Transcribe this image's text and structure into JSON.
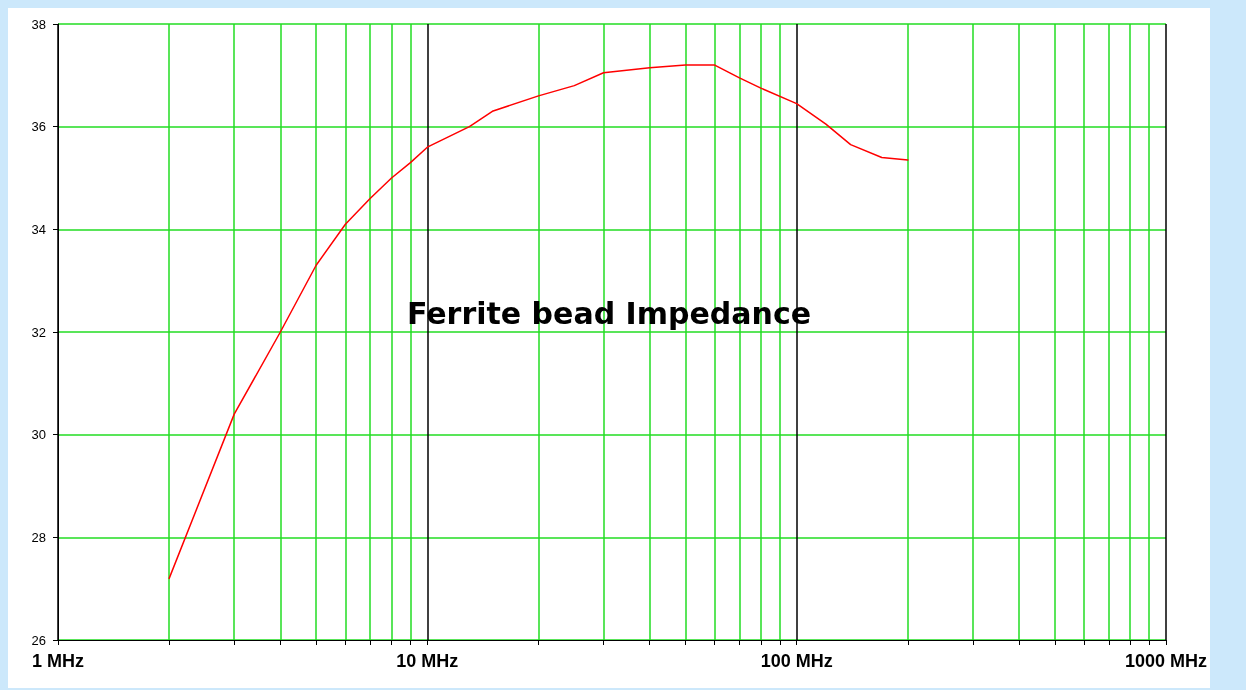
{
  "chart_data": {
    "type": "line",
    "title": "Ferrite bead Impedance",
    "log": "x",
    "grid": true,
    "marker": "none",
    "line_style": "solid",
    "xlim": [
      1,
      1000
    ],
    "xticks": [
      {
        "value": 1,
        "label": "1 MHz"
      },
      {
        "value": 2,
        "label": null
      },
      {
        "value": 3,
        "label": null
      },
      {
        "value": 4,
        "label": null
      },
      {
        "value": 5,
        "label": null
      },
      {
        "value": 6,
        "label": null
      },
      {
        "value": 7,
        "label": null
      },
      {
        "value": 8,
        "label": null
      },
      {
        "value": 9,
        "label": null
      },
      {
        "value": 10,
        "label": "10 MHz"
      },
      {
        "value": 20,
        "label": null
      },
      {
        "value": 30,
        "label": null
      },
      {
        "value": 40,
        "label": null
      },
      {
        "value": 50,
        "label": null
      },
      {
        "value": 60,
        "label": null
      },
      {
        "value": 70,
        "label": null
      },
      {
        "value": 80,
        "label": null
      },
      {
        "value": 90,
        "label": null
      },
      {
        "value": 100,
        "label": "100 MHz"
      },
      {
        "value": 200,
        "label": null
      },
      {
        "value": 300,
        "label": null
      },
      {
        "value": 400,
        "label": null
      },
      {
        "value": 500,
        "label": null
      },
      {
        "value": 600,
        "label": null
      },
      {
        "value": 700,
        "label": null
      },
      {
        "value": 800,
        "label": null
      },
      {
        "value": 900,
        "label": null
      },
      {
        "value": 1000,
        "label": "1000 MHz"
      }
    ],
    "ylim": [
      26,
      38
    ],
    "yticks": [
      26,
      28,
      30,
      32,
      34,
      36,
      38
    ],
    "series": [
      {
        "color": "#ff0000",
        "x": [
          2,
          3,
          4,
          5,
          6,
          7,
          8,
          9,
          10,
          13,
          15,
          20,
          25,
          30,
          40,
          50,
          60,
          70,
          80,
          100,
          120,
          140,
          170,
          200
        ],
        "values": [
          27.2,
          30.4,
          32.0,
          33.3,
          34.1,
          34.6,
          35.0,
          35.3,
          35.6,
          36.0,
          36.3,
          36.6,
          36.8,
          37.05,
          37.15,
          37.2,
          37.2,
          36.95,
          36.75,
          36.45,
          36.05,
          35.65,
          35.4,
          35.35
        ]
      }
    ]
  }
}
